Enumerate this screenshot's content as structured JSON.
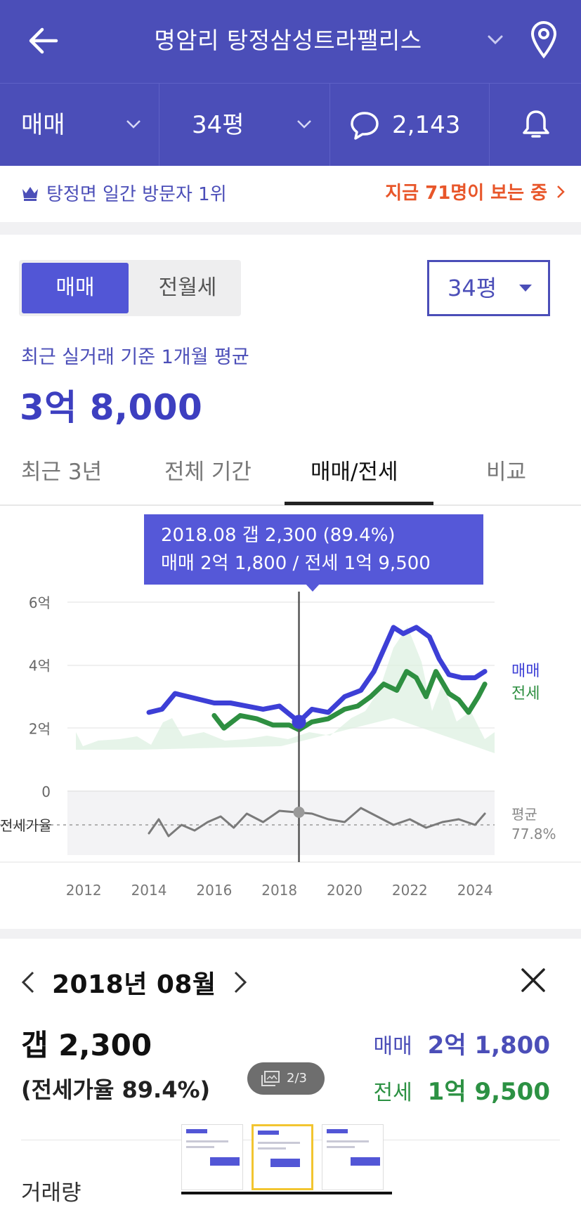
{
  "header": {
    "title": "명암리 탕정삼성트라팰리스"
  },
  "filters": {
    "trade_type": "매매",
    "size": "34평",
    "comment_count": "2,143"
  },
  "ranking": {
    "left_text": "탕정면 일간 방문자 1위",
    "right_text": "지금 71명이 보는 중"
  },
  "segment": {
    "active": "매매",
    "inactive": "전월세"
  },
  "size_select": "34평",
  "summary": {
    "caption": "최근 실거래 기준 1개월 평균",
    "price": "3억 8,000"
  },
  "tabs": [
    {
      "label": "최근 3년"
    },
    {
      "label": "전체 기간"
    },
    {
      "label": "매매/전세"
    },
    {
      "label": "비교"
    }
  ],
  "tooltip": {
    "line1": "2018.08  갭 2,300 (89.4%)",
    "line2": "매매 2억 1,800 / 전세 1억 9,500"
  },
  "chart_data": {
    "type": "line",
    "x_ticks": [
      "2012",
      "2014",
      "2016",
      "2018",
      "2020",
      "2022",
      "2024"
    ],
    "y_ticks": [
      "6억",
      "4억",
      "2억",
      "0"
    ],
    "ylim_eok": [
      0,
      6
    ],
    "series": [
      {
        "name": "매매",
        "color": "#3d3fd6",
        "x": [
          2014.0,
          2014.4,
          2014.8,
          2015.2,
          2015.6,
          2016.0,
          2016.5,
          2017.0,
          2017.5,
          2018.0,
          2018.6,
          2019.0,
          2019.5,
          2020.0,
          2020.5,
          2020.9,
          2021.2,
          2021.5,
          2021.8,
          2022.2,
          2022.6,
          2022.9,
          2023.2,
          2023.6,
          2024.0,
          2024.3
        ],
        "y": [
          2.5,
          2.6,
          3.1,
          3.0,
          2.9,
          2.8,
          2.8,
          2.7,
          2.6,
          2.7,
          2.2,
          2.6,
          2.5,
          3.0,
          3.2,
          3.8,
          4.5,
          5.2,
          5.0,
          5.2,
          4.9,
          4.2,
          3.7,
          3.6,
          3.6,
          3.8
        ]
      },
      {
        "name": "전세",
        "color": "#2e8f41",
        "x": [
          2016.0,
          2016.3,
          2016.8,
          2017.3,
          2017.8,
          2018.3,
          2018.6,
          2019.0,
          2019.5,
          2020.0,
          2020.4,
          2020.8,
          2021.2,
          2021.6,
          2021.9,
          2022.2,
          2022.5,
          2022.8,
          2023.2,
          2023.5,
          2023.8,
          2024.1,
          2024.3
        ],
        "y": [
          2.4,
          2.0,
          2.4,
          2.3,
          2.1,
          2.1,
          1.95,
          2.2,
          2.3,
          2.6,
          2.7,
          3.0,
          3.4,
          3.2,
          3.8,
          3.6,
          3.0,
          3.8,
          3.1,
          2.9,
          2.5,
          3.0,
          3.4
        ]
      },
      {
        "name": "전세가율",
        "color": "#7a7a7a",
        "x": [
          2014.0,
          2014.3,
          2014.6,
          2015.0,
          2015.4,
          2015.8,
          2016.2,
          2016.6,
          2017.0,
          2017.5,
          2018.0,
          2018.5,
          2019.0,
          2019.5,
          2020.0,
          2020.5,
          2021.0,
          2021.5,
          2022.0,
          2022.5,
          2023.0,
          2023.5,
          2024.0,
          2024.3
        ],
        "y": [
          0.2,
          0.7,
          0.1,
          0.5,
          0.3,
          0.6,
          0.8,
          0.4,
          0.9,
          0.6,
          1.0,
          0.95,
          0.9,
          0.7,
          0.6,
          1.1,
          0.8,
          0.5,
          0.7,
          0.4,
          0.6,
          0.7,
          0.5,
          0.9
        ]
      }
    ],
    "labels": {
      "sale": "매매",
      "jeonse": "전세",
      "ratio": "전세가율",
      "avg_label": "평균",
      "avg_value": "77.8%"
    },
    "highlight_x": 2018.6
  },
  "detail": {
    "month": "2018년 08월",
    "gap": "갭 2,300",
    "ratio": "(전세가율 89.4%)",
    "sale_label": "매매",
    "sale_value": "2억 1,800",
    "jeonse_label": "전세",
    "jeonse_value": "1억 9,500",
    "volume_label": "거래량",
    "page": "2/3"
  },
  "colors": {
    "brand": "#4b4eb8",
    "sale": "#3d3fd6",
    "jeonse": "#2e8f41",
    "alert": "#e8562a"
  }
}
